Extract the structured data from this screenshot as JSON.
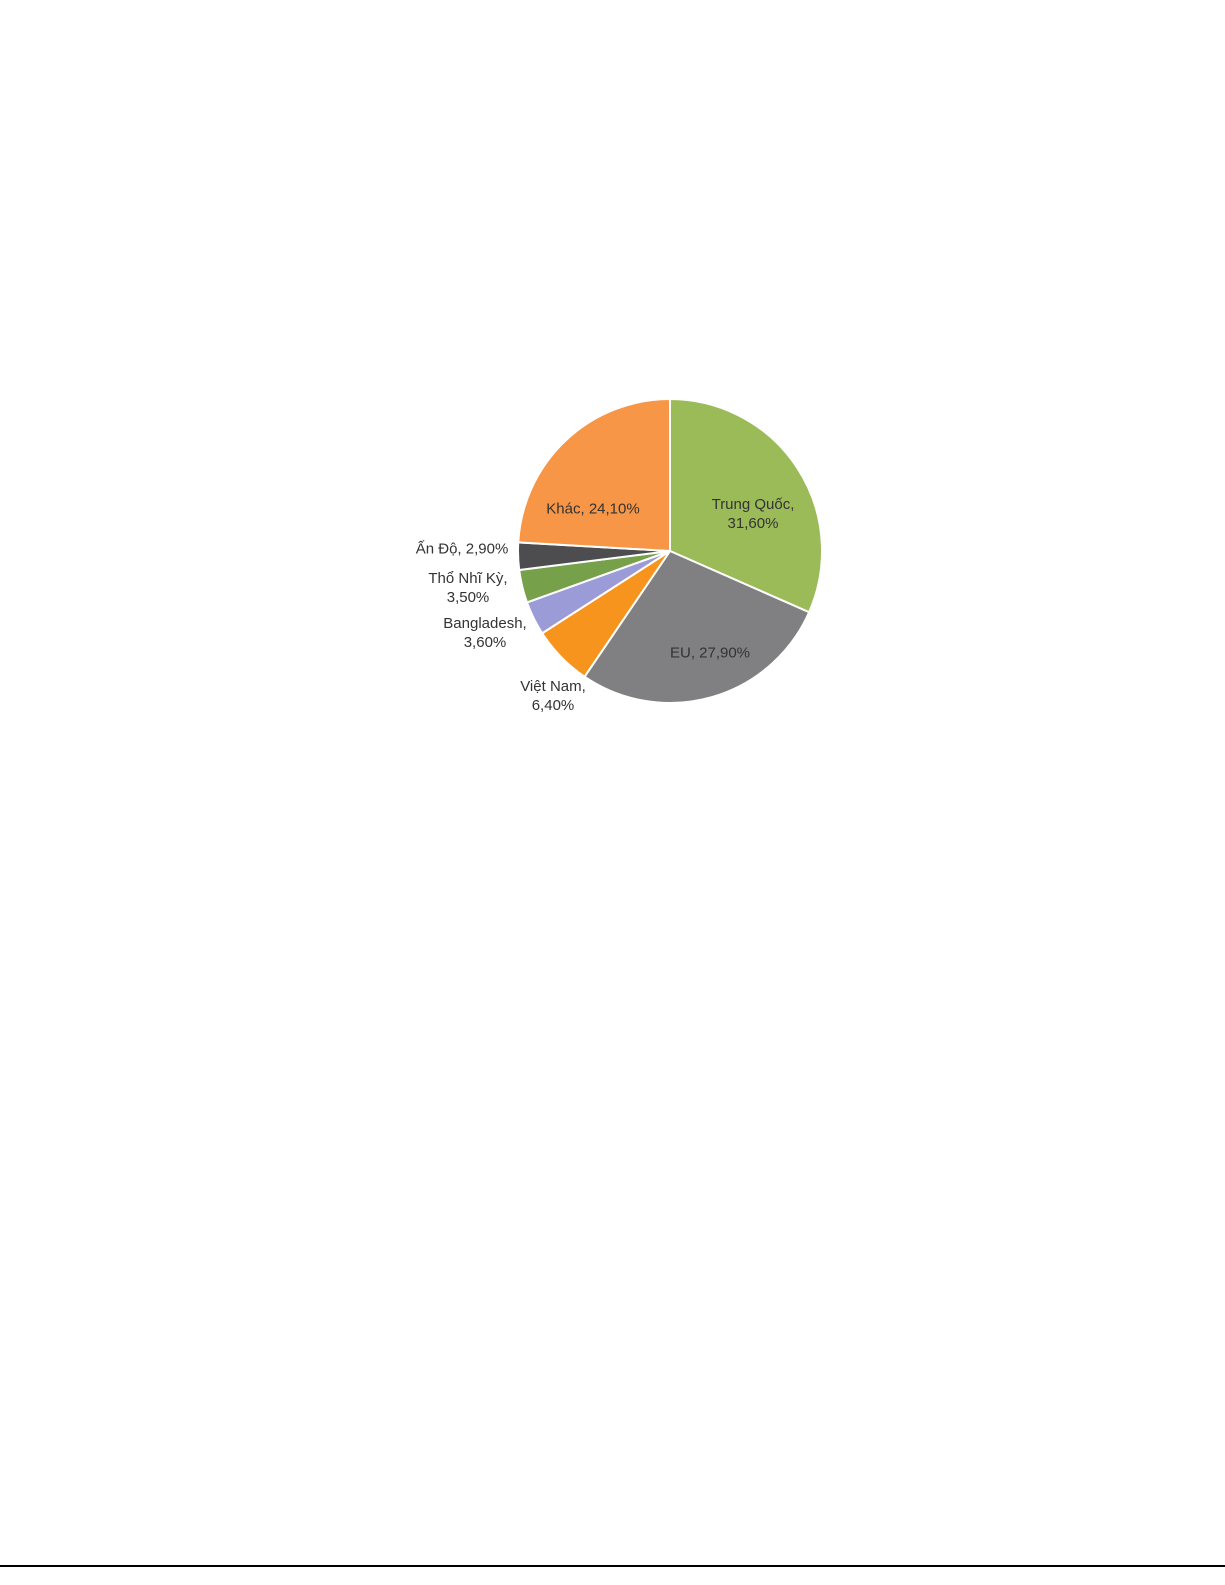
{
  "chart_data": {
    "type": "pie",
    "start_angle": "12 o'clock, clockwise",
    "slices": [
      {
        "label": "Trung Quốc",
        "value": 31.6,
        "text": [
          "Trung  Quốc,",
          "31,60%"
        ],
        "color": "#9BBB59"
      },
      {
        "label": "EU",
        "value": 27.9,
        "text": [
          "EU, 27,90%"
        ],
        "color": "#808083"
      },
      {
        "label": "Việt Nam",
        "value": 6.4,
        "text": [
          "Việt Nam,",
          "6,40%"
        ],
        "color": "#F7941D"
      },
      {
        "label": "Bangladesh",
        "value": 3.6,
        "text": [
          "Bangladesh,",
          "3,60%"
        ],
        "color": "#9B9BD7"
      },
      {
        "label": "Thổ Nhĩ Kỳ",
        "value": 3.5,
        "text": [
          "Thổ  Nhĩ Kỳ,",
          "3,50%"
        ],
        "color": "#77A04A"
      },
      {
        "label": "Ấn Độ",
        "value": 2.9,
        "text": [
          "Ấn Độ, 2,90%"
        ],
        "color": "#4D4D4F"
      },
      {
        "label": "Khác",
        "value": 24.1,
        "text": [
          "Khác, 24,10%"
        ],
        "color": "#F79646"
      }
    ]
  }
}
